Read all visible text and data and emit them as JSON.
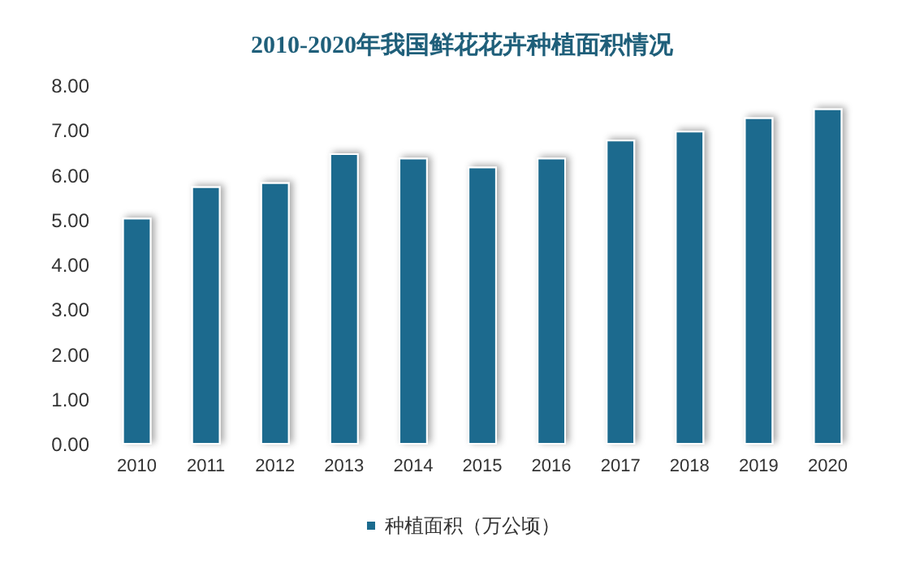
{
  "chart_data": {
    "type": "bar",
    "title": "2010-2020年我国鲜花花卉种植面积情况",
    "categories": [
      "2010",
      "2011",
      "2012",
      "2013",
      "2014",
      "2015",
      "2016",
      "2017",
      "2018",
      "2019",
      "2020"
    ],
    "series": [
      {
        "name": "种植面积（万公顷）",
        "color": "#1b6b8e",
        "values": [
          5.06,
          5.76,
          5.85,
          6.5,
          6.4,
          6.2,
          6.4,
          6.8,
          7.0,
          7.3,
          7.5
        ]
      }
    ],
    "ylim": [
      0,
      8
    ],
    "yticks": [
      {
        "value": 0,
        "label": "0.00"
      },
      {
        "value": 1,
        "label": "1.00"
      },
      {
        "value": 2,
        "label": "2.00"
      },
      {
        "value": 3,
        "label": "3.00"
      },
      {
        "value": 4,
        "label": "4.00"
      },
      {
        "value": 5,
        "label": "5.00"
      },
      {
        "value": 6,
        "label": "6.00"
      },
      {
        "value": 7,
        "label": "7.00"
      },
      {
        "value": 8,
        "label": "8.00"
      }
    ],
    "grid": false,
    "legend": "bottom"
  }
}
